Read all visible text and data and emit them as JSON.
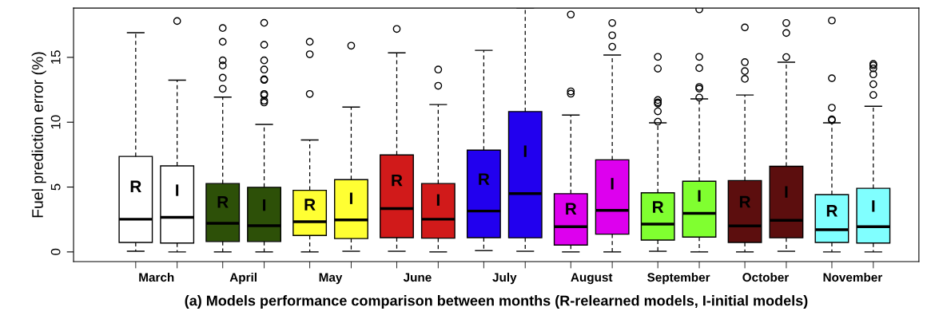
{
  "chart_data": {
    "type": "box",
    "ylabel": "Fuel prediction error (%)",
    "xlabel": "(a) Models performance comparison between months (R-relearned models, I-initial models)",
    "categories": [
      "March",
      "April",
      "May",
      "June",
      "July",
      "August",
      "September",
      "October",
      "November"
    ],
    "ylim": [
      -0.75,
      18.8
    ],
    "yticks": [
      0,
      5,
      10,
      15
    ],
    "grid": false,
    "legend": false,
    "marker": "circle",
    "series": [
      {
        "name": "R",
        "colors": [
          "#ffffff",
          "#2d5008",
          "#ffff33",
          "#d11a1a",
          "#2200ee",
          "#dd00ee",
          "#80ff30",
          "#5c0e0e",
          "#80ffff"
        ],
        "boxes": [
          {
            "low": 0.05,
            "q1": 0.73,
            "median": 2.52,
            "q3": 7.36,
            "high": 16.9
          },
          {
            "low": 0,
            "q1": 0.8,
            "median": 2.21,
            "q3": 5.27,
            "high": 11.94,
            "outliers": [
              17.26,
              16.2,
              14.77,
              14.37,
              13.43,
              12.58
            ]
          },
          {
            "low": 0,
            "q1": 1.27,
            "median": 2.33,
            "q3": 4.75,
            "high": 8.63,
            "outliers": [
              16.2,
              15.24,
              12.18
            ]
          },
          {
            "low": 0.05,
            "q1": 1.1,
            "median": 3.34,
            "q3": 7.48,
            "high": 15.35,
            "outliers": [
              17.19
            ]
          },
          {
            "low": 0.1,
            "q1": 1.1,
            "median": 3.15,
            "q3": 7.85,
            "high": 15.54
          },
          {
            "low": 0,
            "q1": 0.53,
            "median": 1.95,
            "q3": 4.49,
            "high": 10.55,
            "outliers": [
              18.3,
              12.38,
              12.2
            ]
          },
          {
            "low": 0.05,
            "q1": 0.91,
            "median": 2.15,
            "q3": 4.56,
            "high": 9.95,
            "outliers": [
              15.04,
              14.13,
              11.71,
              11.53,
              11.44,
              10.84,
              10.04
            ]
          },
          {
            "low": 0,
            "q1": 0.73,
            "median": 2.01,
            "q3": 5.5,
            "high": 12.1,
            "outliers": [
              17.31,
              14.63,
              13.94,
              13.34
            ]
          },
          {
            "low": 0,
            "q1": 0.73,
            "median": 1.71,
            "q3": 4.42,
            "high": 9.95,
            "outliers": [
              17.84,
              13.39,
              11.12,
              10.22,
              10.15
            ]
          }
        ]
      },
      {
        "name": "I",
        "colors": [
          "#ffffff",
          "#2d5008",
          "#ffff33",
          "#d11a1a",
          "#2200ee",
          "#dd00ee",
          "#80ff30",
          "#5c0e0e",
          "#80ffff"
        ],
        "boxes": [
          {
            "low": 0,
            "q1": 0.68,
            "median": 2.66,
            "q3": 6.63,
            "high": 13.24,
            "outliers": [
              17.8
            ]
          },
          {
            "low": 0,
            "q1": 0.8,
            "median": 2.02,
            "q3": 4.98,
            "high": 9.83,
            "outliers": [
              17.66,
              15.97,
              14.77,
              14.06,
              13.31,
              13.26,
              12.18,
              12.09,
              11.66,
              11.52
            ]
          },
          {
            "low": 0.05,
            "q1": 1.03,
            "median": 2.47,
            "q3": 5.57,
            "high": 11.17,
            "outliers": [
              15.9
            ]
          },
          {
            "low": 0,
            "q1": 1.06,
            "median": 2.52,
            "q3": 5.27,
            "high": 11.36,
            "outliers": [
              14.06,
              12.81
            ]
          },
          {
            "low": 0.05,
            "q1": 1.09,
            "median": 4.49,
            "q3": 10.82,
            "high": 18.8
          },
          {
            "low": 0,
            "q1": 1.37,
            "median": 3.2,
            "q3": 7.1,
            "high": 15.18,
            "outliers": [
              17.65,
              16.7,
              15.82
            ]
          },
          {
            "low": 0,
            "q1": 1.14,
            "median": 2.97,
            "q3": 5.45,
            "high": 11.8,
            "outliers": [
              18.7,
              15.04,
              14.17,
              12.72,
              12.59,
              11.9
            ]
          },
          {
            "low": 0.05,
            "q1": 1.09,
            "median": 2.43,
            "q3": 6.6,
            "high": 14.63,
            "outliers": [
              17.65,
              16.88,
              15.02
            ]
          },
          {
            "low": 0,
            "q1": 0.68,
            "median": 1.95,
            "q3": 4.9,
            "high": 11.23,
            "outliers": [
              14.49,
              14.38,
              14.15,
              13.69,
              12.93,
              12.1
            ]
          }
        ]
      }
    ]
  }
}
